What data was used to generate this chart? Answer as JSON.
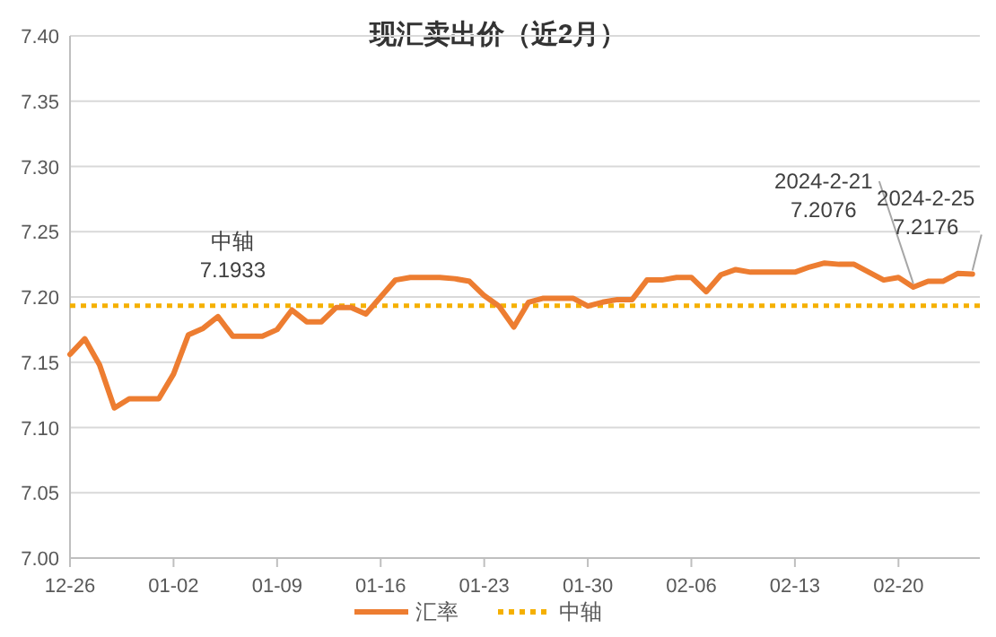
{
  "chart_data": {
    "type": "line",
    "title": "现汇卖出价（近2月）",
    "x": [
      "2023-12-26",
      "2023-12-27",
      "2023-12-28",
      "2023-12-29",
      "2023-12-30",
      "2023-12-31",
      "2024-01-01",
      "2024-01-02",
      "2024-01-03",
      "2024-01-04",
      "2024-01-05",
      "2024-01-06",
      "2024-01-07",
      "2024-01-08",
      "2024-01-09",
      "2024-01-10",
      "2024-01-11",
      "2024-01-12",
      "2024-01-13",
      "2024-01-14",
      "2024-01-15",
      "2024-01-16",
      "2024-01-17",
      "2024-01-18",
      "2024-01-19",
      "2024-01-20",
      "2024-01-21",
      "2024-01-22",
      "2024-01-23",
      "2024-01-24",
      "2024-01-25",
      "2024-01-26",
      "2024-01-27",
      "2024-01-28",
      "2024-01-29",
      "2024-01-30",
      "2024-01-31",
      "2024-02-01",
      "2024-02-02",
      "2024-02-03",
      "2024-02-04",
      "2024-02-05",
      "2024-02-06",
      "2024-02-07",
      "2024-02-08",
      "2024-02-09",
      "2024-02-10",
      "2024-02-11",
      "2024-02-12",
      "2024-02-13",
      "2024-02-14",
      "2024-02-15",
      "2024-02-16",
      "2024-02-17",
      "2024-02-18",
      "2024-02-19",
      "2024-02-20",
      "2024-02-21",
      "2024-02-22",
      "2024-02-23",
      "2024-02-24",
      "2024-02-25"
    ],
    "series": [
      {
        "name": "汇率",
        "color": "#ed7d31",
        "values": [
          7.156,
          7.168,
          7.148,
          7.115,
          7.122,
          7.122,
          7.122,
          7.141,
          7.171,
          7.176,
          7.185,
          7.17,
          7.17,
          7.17,
          7.175,
          7.19,
          7.181,
          7.181,
          7.192,
          7.192,
          7.187,
          7.2,
          7.213,
          7.215,
          7.215,
          7.215,
          7.214,
          7.212,
          7.201,
          7.193,
          7.177,
          7.196,
          7.199,
          7.199,
          7.199,
          7.193,
          7.196,
          7.198,
          7.198,
          7.213,
          7.213,
          7.215,
          7.215,
          7.204,
          7.217,
          7.221,
          7.219,
          7.219,
          7.219,
          7.219,
          7.223,
          7.226,
          7.225,
          7.225,
          7.219,
          7.213,
          7.215,
          7.2076,
          7.212,
          7.212,
          7.218,
          7.2176
        ]
      }
    ],
    "xlim": [
      "2023-12-26",
      "2024-02-25T12:00"
    ],
    "xticks": [
      {
        "value": "2023-12-26",
        "label": "12-26"
      },
      {
        "value": "2024-01-02",
        "label": "01-02"
      },
      {
        "value": "2024-01-09",
        "label": "01-09"
      },
      {
        "value": "2024-01-16",
        "label": "01-16"
      },
      {
        "value": "2024-01-23",
        "label": "01-23"
      },
      {
        "value": "2024-01-30",
        "label": "01-30"
      },
      {
        "value": "2024-02-06",
        "label": "02-06"
      },
      {
        "value": "2024-02-13",
        "label": "02-13"
      },
      {
        "value": "2024-02-20",
        "label": "02-20"
      }
    ],
    "ylim": [
      7.0,
      7.4
    ],
    "yticks": [
      {
        "value": 7.0,
        "label": "7.00"
      },
      {
        "value": 7.05,
        "label": "7.05"
      },
      {
        "value": 7.1,
        "label": "7.10"
      },
      {
        "value": 7.15,
        "label": "7.15"
      },
      {
        "value": 7.2,
        "label": "7.20"
      },
      {
        "value": 7.25,
        "label": "7.25"
      },
      {
        "value": 7.3,
        "label": "7.30"
      },
      {
        "value": 7.35,
        "label": "7.35"
      },
      {
        "value": 7.4,
        "label": "7.40"
      }
    ],
    "ref_lines": [
      {
        "axis": "y",
        "value": 7.1933,
        "label": "中轴",
        "color": "#f5b000",
        "line_style": "dotted"
      }
    ],
    "annotations": [
      {
        "text": "中轴\n7.1933",
        "x": "2024-01-06",
        "y": 7.1933
      },
      {
        "text": "2024-2-21\n7.2076",
        "x": "2024-02-21",
        "y": 7.2076
      },
      {
        "text": "2024-2-25\n7.2176",
        "x": "2024-02-25",
        "y": 7.2176
      }
    ],
    "grid": "y",
    "legend": "bottom",
    "marker": "none",
    "line_style": "solid"
  }
}
